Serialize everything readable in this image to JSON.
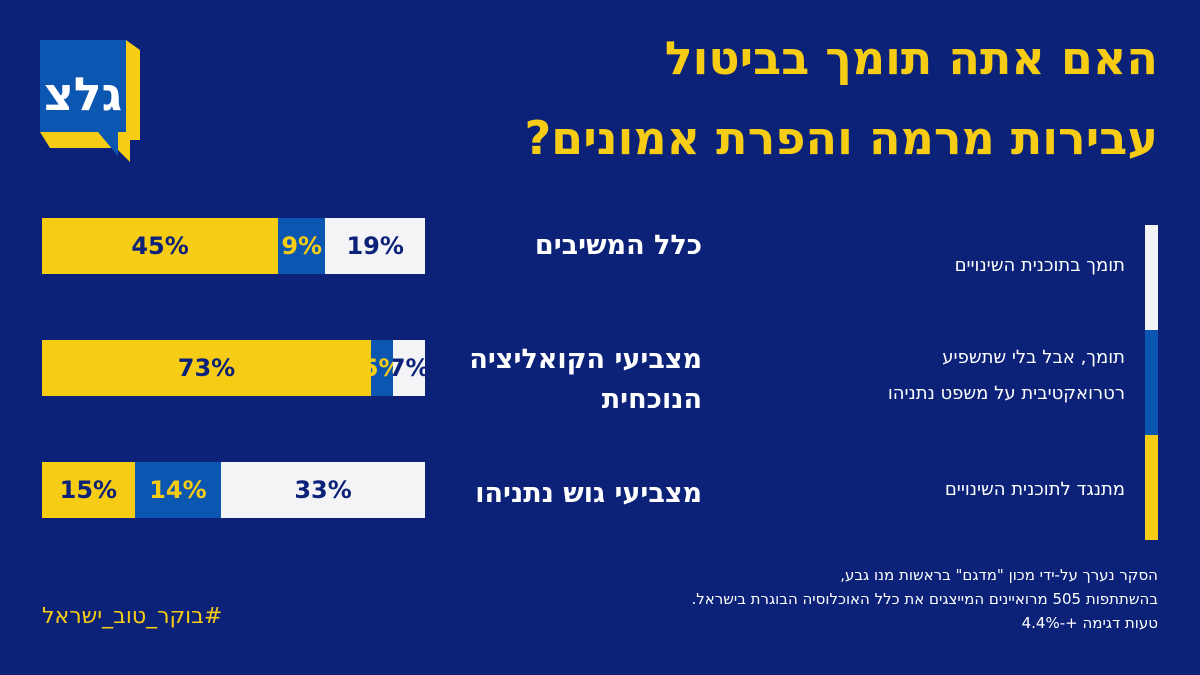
{
  "logo": {
    "text": "גלצ"
  },
  "title": {
    "line1": "האם אתה תומך בביטול",
    "line2": "עבירות מרמה והפרת אמונים?"
  },
  "colors": {
    "background": "#0c2278",
    "support": "#f4f4f6",
    "support_no_retro": "#0b56b0",
    "oppose": "#f7cc14"
  },
  "chart_data": {
    "type": "bar",
    "stacked": true,
    "orientation": "horizontal",
    "categories": [
      "כלל המשיבים",
      "מצביעי הקואליציה הנוכחית",
      "מצביעי גוש נתניהו"
    ],
    "series": [
      {
        "name": "תומך בתוכנית השינויים",
        "values": [
          19,
          7,
          33
        ],
        "labels": [
          "19%",
          "7%",
          "33%"
        ]
      },
      {
        "name": "תומך, אבל בלי שתשפיע רטרואקטיבית על משפט נתניהו",
        "values": [
          9,
          5,
          14
        ],
        "labels": [
          "9%",
          "5%",
          "14%"
        ]
      },
      {
        "name": "מתנגד לתוכנית השינויים",
        "values": [
          45,
          73,
          15
        ],
        "labels": [
          "45%",
          "73%",
          "15%"
        ]
      }
    ],
    "legend": {
      "placement": "right",
      "items": [
        "תומך בתוכנית השינויים",
        "תומך, אבל בלי שתשפיע",
        "רטרואקטיבית על משפט נתניהו",
        "מתנגד לתוכנית השינויים"
      ]
    }
  },
  "row_labels": {
    "r0": "כלל המשיבים",
    "r1a": "מצביעי הקואליציה",
    "r1b": "הנוכחית",
    "r2": "מצביעי גוש נתניהו"
  },
  "note": {
    "line1": "הסקר נערך על-ידי מכון \"מדגם\" בראשות מנו גבע,",
    "line2": "בהשתתפות 505 מרואיינים המייצגים את כלל האוכלוסיה הבוגרת בישראל.",
    "line3": "טעות דגימה +-4.4%"
  },
  "hashtag": "#בוקר_טוב_ישראל"
}
